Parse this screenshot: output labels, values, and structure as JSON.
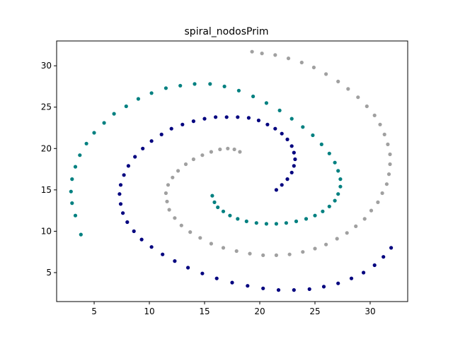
{
  "chart_data": {
    "type": "scatter",
    "title": "spiral_nodosPrim",
    "xlabel": "",
    "ylabel": "",
    "xlim": [
      1.6,
      33.4
    ],
    "ylim": [
      1.5,
      33.0
    ],
    "xticks": [
      5,
      10,
      15,
      20,
      25,
      30
    ],
    "yticks": [
      5,
      10,
      15,
      20,
      25,
      30
    ],
    "grid": false,
    "legend": "none",
    "series": [
      {
        "color": "#00007f",
        "x": [
          21.5,
          22.0,
          22.5,
          22.9,
          23.1,
          23.2,
          23.1,
          22.9,
          22.5,
          22.0,
          21.4,
          20.7,
          19.9,
          19.0,
          18.0,
          17.0,
          16.0,
          15.0,
          14.0,
          13.0,
          12.0,
          11.1,
          10.2,
          9.4,
          8.7,
          8.1,
          7.7,
          7.4,
          7.3,
          7.4,
          7.6,
          8.0,
          8.6,
          9.3,
          10.2,
          11.2,
          12.3,
          13.5,
          14.8,
          16.1,
          17.5,
          18.9,
          20.3,
          21.7,
          23.1,
          24.5,
          25.8,
          27.1,
          28.3,
          29.4,
          30.4,
          31.2,
          31.9
        ],
        "y": [
          15.0,
          15.6,
          16.3,
          17.1,
          17.9,
          18.7,
          19.5,
          20.3,
          21.1,
          21.8,
          22.4,
          22.9,
          23.4,
          23.7,
          23.8,
          23.8,
          23.8,
          23.6,
          23.3,
          22.9,
          22.4,
          21.7,
          20.9,
          20.0,
          19.0,
          17.9,
          16.8,
          15.6,
          14.5,
          13.3,
          12.2,
          11.1,
          10.0,
          9.0,
          8.1,
          7.2,
          6.4,
          5.6,
          4.9,
          4.3,
          3.8,
          3.4,
          3.1,
          2.9,
          2.9,
          3.0,
          3.3,
          3.7,
          4.3,
          5.0,
          5.9,
          6.9,
          8.0
        ]
      },
      {
        "color": "#008080",
        "x": [
          15.7,
          15.9,
          16.2,
          16.7,
          17.3,
          18.0,
          18.8,
          19.7,
          20.6,
          21.5,
          22.4,
          23.3,
          24.2,
          25.0,
          25.7,
          26.3,
          26.8,
          27.1,
          27.3,
          27.3,
          27.1,
          26.8,
          26.3,
          25.6,
          24.8,
          23.9,
          22.9,
          21.8,
          20.6,
          19.4,
          18.1,
          16.8,
          15.5,
          14.1,
          12.8,
          11.5,
          10.2,
          9.0,
          7.9,
          6.8,
          5.9,
          5.0,
          4.3,
          3.7,
          3.3,
          3.0,
          2.9,
          3.0,
          3.3,
          3.8
        ],
        "y": [
          14.3,
          13.5,
          12.9,
          12.4,
          11.9,
          11.5,
          11.2,
          11.0,
          10.9,
          10.9,
          11.0,
          11.2,
          11.5,
          11.9,
          12.4,
          13.0,
          13.7,
          14.5,
          15.4,
          16.3,
          17.3,
          18.3,
          19.4,
          20.5,
          21.6,
          22.6,
          23.6,
          24.6,
          25.5,
          26.3,
          27.0,
          27.5,
          27.8,
          27.8,
          27.6,
          27.3,
          26.7,
          26.0,
          25.1,
          24.2,
          23.1,
          21.9,
          20.6,
          19.2,
          17.8,
          16.3,
          14.8,
          13.4,
          11.9,
          9.6
        ]
      },
      {
        "color": "#a0a0a0",
        "x": [
          18.2,
          17.7,
          17.1,
          16.4,
          15.6,
          14.8,
          14.0,
          13.3,
          12.6,
          12.1,
          11.7,
          11.5,
          11.6,
          11.8,
          12.3,
          12.9,
          13.7,
          14.6,
          15.6,
          16.7,
          17.9,
          19.1,
          20.3,
          21.5,
          22.7,
          23.9,
          25.0,
          26.0,
          27.0,
          27.9,
          28.7,
          29.5,
          30.1,
          30.7,
          31.1,
          31.5,
          31.7,
          31.8,
          31.8,
          31.6,
          31.3,
          30.9,
          30.4,
          29.7,
          28.9,
          28.0,
          27.1,
          26.0,
          24.9,
          23.8,
          22.6,
          21.4,
          20.2,
          19.3
        ],
        "y": [
          19.6,
          19.9,
          20.0,
          19.9,
          19.6,
          19.2,
          18.7,
          18.1,
          17.3,
          16.5,
          15.6,
          14.6,
          13.6,
          12.6,
          11.6,
          10.7,
          9.9,
          9.2,
          8.5,
          8.0,
          7.6,
          7.3,
          7.1,
          7.1,
          7.2,
          7.5,
          7.9,
          8.4,
          9.1,
          9.8,
          10.6,
          11.5,
          12.5,
          13.5,
          14.6,
          15.7,
          16.9,
          18.1,
          19.3,
          20.5,
          21.7,
          22.9,
          24.0,
          25.1,
          26.2,
          27.2,
          28.1,
          29.0,
          29.8,
          30.4,
          30.9,
          31.3,
          31.5,
          31.7
        ]
      }
    ]
  }
}
